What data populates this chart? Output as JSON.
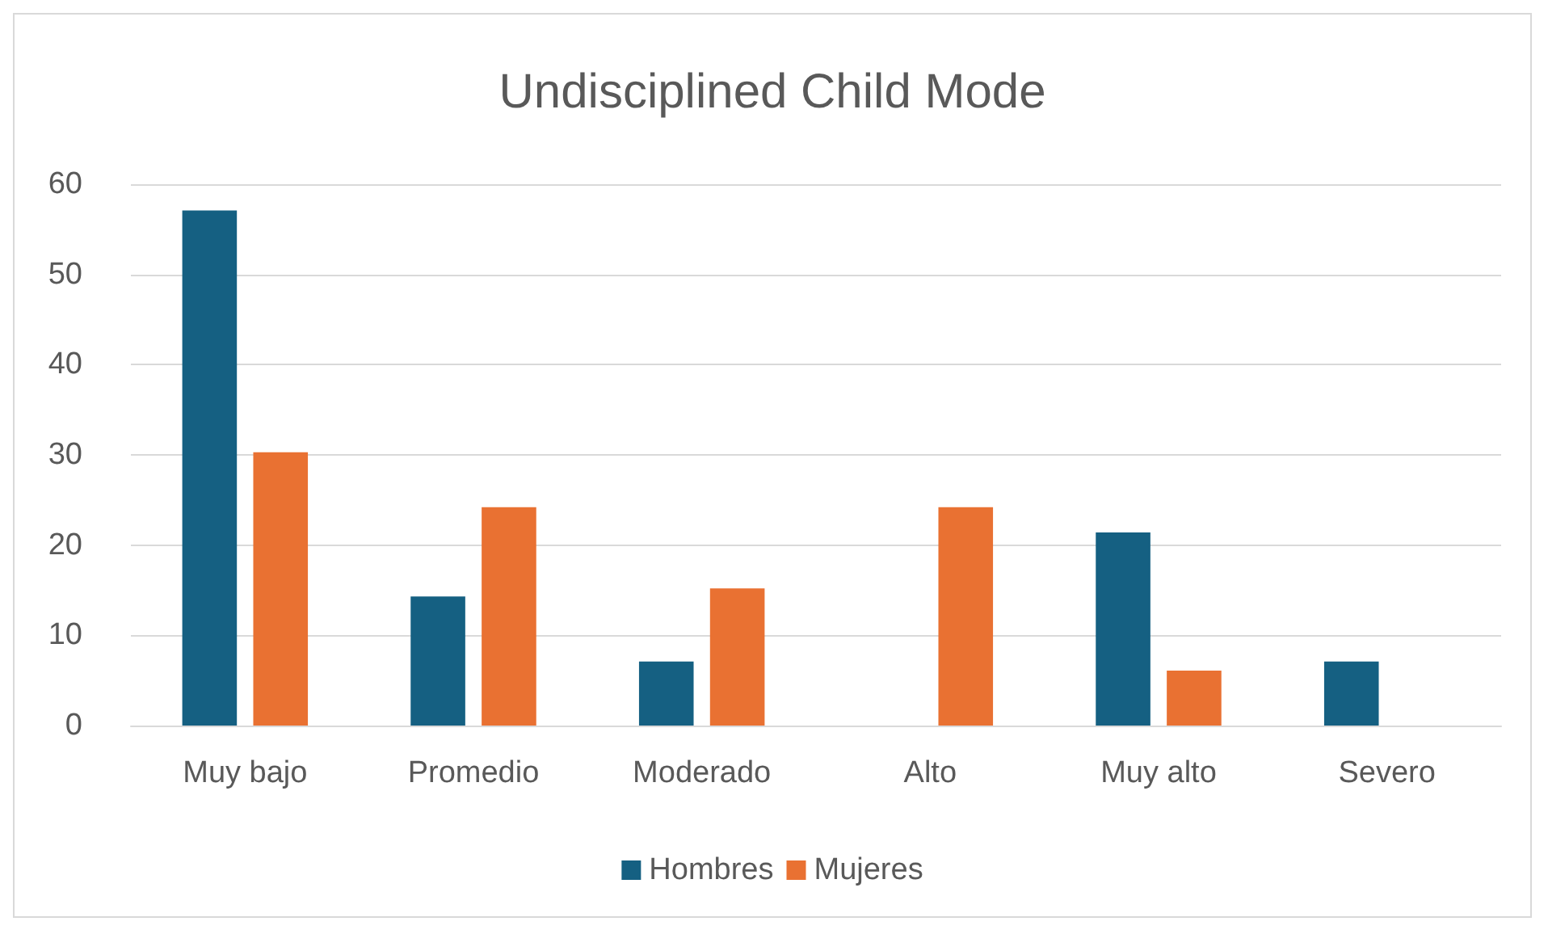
{
  "chart_data": {
    "type": "bar",
    "title": "Undisciplined Child Mode",
    "categories": [
      "Muy bajo",
      "Promedio",
      "Moderado",
      "Alto",
      "Muy alto",
      "Severo"
    ],
    "series": [
      {
        "name": "Hombres",
        "color": "#156082",
        "values": [
          57.1,
          14.3,
          7.1,
          0,
          21.4,
          7.1
        ]
      },
      {
        "name": "Mujeres",
        "color": "#e97132",
        "values": [
          30.3,
          24.2,
          15.2,
          24.2,
          6.1,
          0
        ]
      }
    ],
    "ylim": [
      0,
      60
    ],
    "yticks": [
      0,
      10,
      20,
      30,
      40,
      50,
      60
    ],
    "grid": "y",
    "legend": "bottom"
  }
}
